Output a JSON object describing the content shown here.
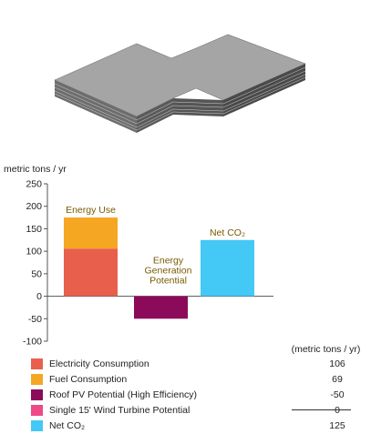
{
  "chart_data": {
    "type": "bar",
    "stacked": true,
    "ylabel": "metric tons / yr",
    "ylim": [
      -100,
      250
    ],
    "yticks": [
      250,
      200,
      150,
      100,
      50,
      0,
      -50,
      -100
    ],
    "grid": false,
    "bars": [
      {
        "label": "Energy Use",
        "segments": [
          {
            "name": "Electricity Consumption",
            "value": 106,
            "color": "#e8604c"
          },
          {
            "name": "Fuel Consumption",
            "value": 69,
            "color": "#f5a623"
          }
        ]
      },
      {
        "label": "Energy Generation Potential",
        "label_lines": [
          "Energy",
          "Generation",
          "Potential"
        ],
        "segments": [
          {
            "name": "Roof PV Potential (High Efficiency)",
            "value": -50,
            "color": "#8b0a5a"
          },
          {
            "name": "Single 15' Wind Turbine Potential",
            "value": 0,
            "color": "#ee4a8a"
          }
        ]
      },
      {
        "label": "Net CO₂",
        "segments": [
          {
            "name": "Net CO₂",
            "value": 125,
            "color": "#44c8f5"
          }
        ]
      }
    ],
    "legend": {
      "units": "(metric tons / yr)",
      "items": [
        {
          "label": "Electricity Consumption",
          "value": "106",
          "color": "#e8604c"
        },
        {
          "label": "Fuel Consumption",
          "value": "69",
          "color": "#f5a623"
        },
        {
          "label": "Roof PV Potential (High Efficiency)",
          "value": "-50",
          "color": "#8b0a5a"
        },
        {
          "label": "Single 15' Wind Turbine Potential",
          "value": "0",
          "color": "#ee4a8a"
        },
        {
          "label": "Net CO₂",
          "value": "125",
          "color": "#44c8f5"
        }
      ]
    },
    "colors": {
      "label_text": "#7a5a00"
    }
  }
}
